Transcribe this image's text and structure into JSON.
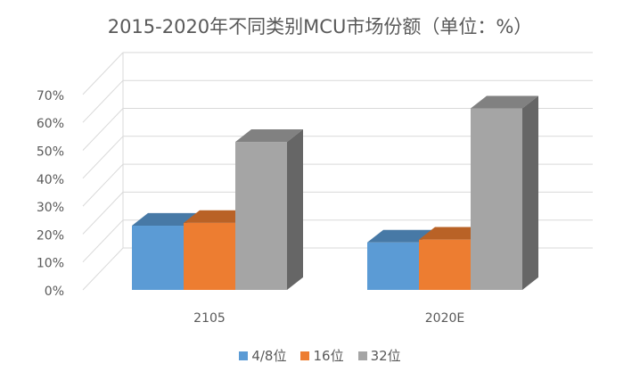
{
  "title": "2015-2020年不同类别MCU市场份额（单位：%）",
  "chart_data": {
    "type": "bar",
    "title": "2015-2020年不同类别MCU市场份额（单位：%）",
    "categories": [
      "2105",
      "2020E"
    ],
    "series": [
      {
        "name": "4/8位",
        "values": [
          23,
          17
        ],
        "color": "#5B9BD5"
      },
      {
        "name": "16位",
        "values": [
          24,
          18
        ],
        "color": "#ED7D31"
      },
      {
        "name": "32位",
        "values": [
          53,
          65
        ],
        "color": "#A5A5A5"
      }
    ],
    "ylim": [
      0,
      70
    ],
    "yticks": [
      "0%",
      "10%",
      "20%",
      "30%",
      "40%",
      "50%",
      "60%",
      "70%"
    ],
    "grid": true,
    "legend": "bottom",
    "style": "3d-clustered-column"
  }
}
